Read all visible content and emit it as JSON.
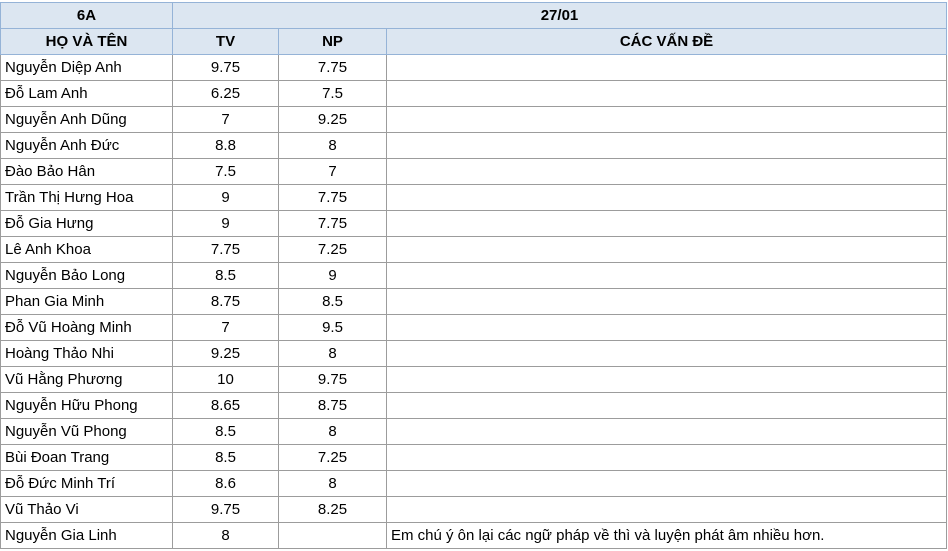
{
  "table": {
    "group_header": [
      "6A",
      "27/01"
    ],
    "columns": [
      "HỌ VÀ TÊN",
      "TV",
      "NP",
      "CÁC VẤN ĐỀ"
    ],
    "rows": [
      [
        "Nguyễn Diệp Anh",
        9.75,
        7.75,
        null
      ],
      [
        "Đỗ Lam Anh",
        6.25,
        7.5,
        null
      ],
      [
        "Nguyễn Anh Dũng",
        7,
        9.25,
        null
      ],
      [
        "Nguyễn Anh Đức",
        8.8,
        8,
        null
      ],
      [
        "Đào Bảo Hân",
        7.5,
        7,
        null
      ],
      [
        "Trần Thị Hưng Hoa",
        9,
        7.75,
        null
      ],
      [
        "Đỗ Gia Hưng",
        9,
        7.75,
        null
      ],
      [
        "Lê Anh Khoa",
        7.75,
        7.25,
        null
      ],
      [
        "Nguyễn Bảo Long",
        8.5,
        9,
        null
      ],
      [
        "Phan Gia Minh",
        8.75,
        8.5,
        null
      ],
      [
        "Đỗ Vũ Hoàng Minh",
        7,
        9.5,
        null
      ],
      [
        "Hoàng Thảo Nhi",
        9.25,
        8,
        null
      ],
      [
        "Vũ Hằng Phương",
        10,
        9.75,
        null
      ],
      [
        "Nguyễn Hữu Phong",
        8.65,
        8.75,
        null
      ],
      [
        "Nguyễn Vũ Phong",
        8.5,
        8,
        null
      ],
      [
        "Bùi Đoan Trang",
        8.5,
        7.25,
        null
      ],
      [
        "Đỗ Đức Minh Trí",
        8.6,
        8,
        null
      ],
      [
        "Vũ Thảo Vi",
        9.75,
        8.25,
        null
      ],
      [
        "Nguyễn Gia Linh",
        8,
        null,
        "Em chú ý ôn lại các ngữ pháp về thì và luyện phát âm nhiều hơn."
      ]
    ]
  }
}
